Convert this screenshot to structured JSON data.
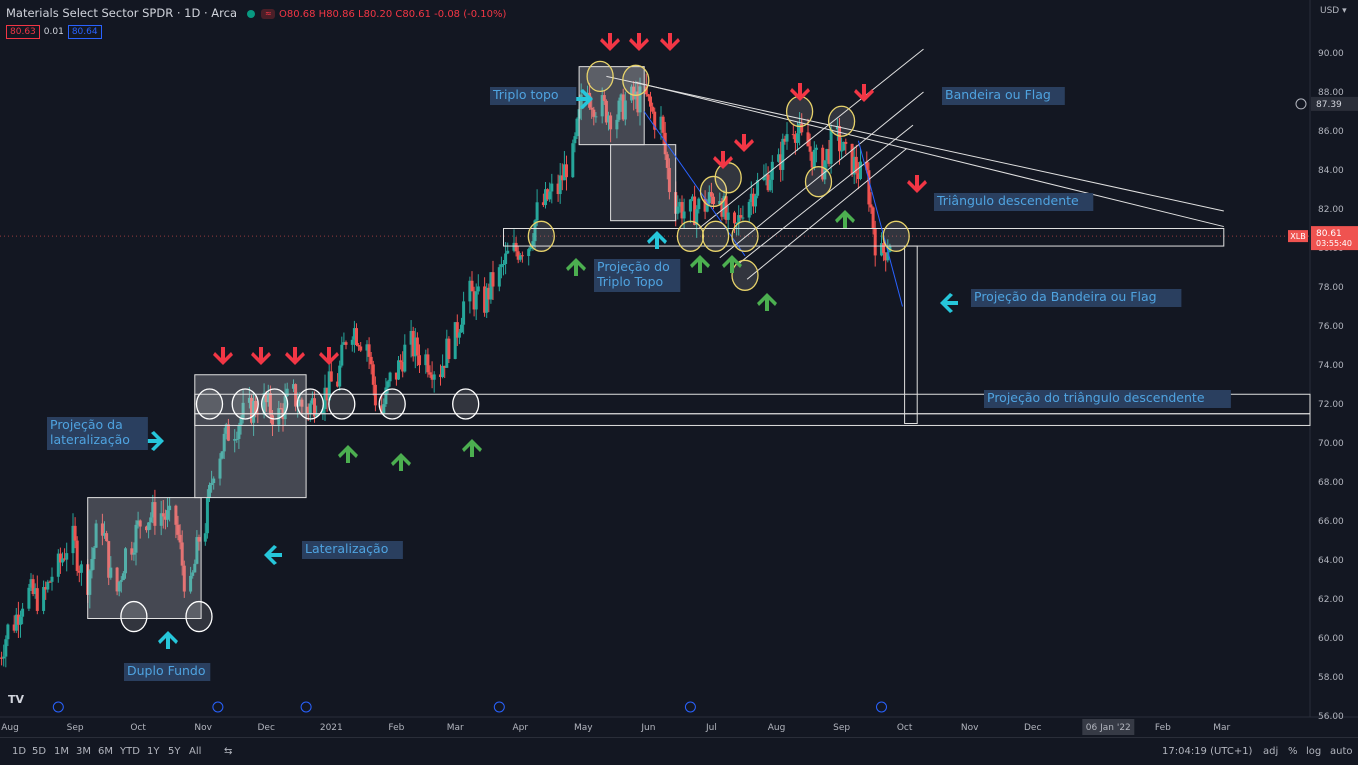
{
  "header": {
    "symbol": "Materials Select Sector SPDR · 1D · Arca",
    "ohlc": "O80.68 H80.86 L80.20 C80.61 -0.08 (-0.10%)",
    "bid": "80.63",
    "spread": "0.01",
    "ask": "80.64"
  },
  "price_scale": {
    "currency": "USD",
    "last_price_label": "80.61",
    "ticker_tag": "XLB",
    "countdown": "03:55:40",
    "crosshair_price": "87.39"
  },
  "toolbar": {
    "timeframes": [
      "1D",
      "5D",
      "1M",
      "3M",
      "6M",
      "YTD",
      "1Y",
      "5Y",
      "All"
    ],
    "clock": "17:04:19 (UTC+1)",
    "right_buttons": [
      "adj",
      "%",
      "log",
      "auto"
    ]
  },
  "logo_text": "TV",
  "chart_data": {
    "type": "candlestick",
    "title": "Materials Select Sector SPDR · 1D · Arca",
    "ylim": [
      56,
      92
    ],
    "y_ticks": [
      56,
      58,
      60,
      62,
      64,
      66,
      68,
      70,
      72,
      74,
      76,
      78,
      80,
      82,
      84,
      86,
      88,
      90
    ],
    "x_ticks": [
      "Aug",
      "Sep",
      "Oct",
      "Nov",
      "Dec",
      "2021",
      "Feb",
      "Mar",
      "Apr",
      "May",
      "Jun",
      "Jul",
      "Aug",
      "Sep",
      "Oct",
      "Nov",
      "Dec",
      "06 Jan '22",
      "Feb",
      "Mar"
    ],
    "x_tick_dates": [
      "2020-08-01",
      "2020-09-01",
      "2020-10-01",
      "2020-11-01",
      "2020-12-01",
      "2021-01-01",
      "2021-02-01",
      "2021-03-01",
      "2021-04-01",
      "2021-05-01",
      "2021-06-01",
      "2021-07-01",
      "2021-08-01",
      "2021-09-01",
      "2021-10-01",
      "2021-11-01",
      "2021-12-01",
      "2022-01-06",
      "2022-02-01",
      "2022-03-01"
    ],
    "grid": false,
    "weekly_closes": [
      [
        "2020-07-27",
        59.0
      ],
      [
        "2020-08-03",
        60.8
      ],
      [
        "2020-08-10",
        62.3
      ],
      [
        "2020-08-17",
        62.0
      ],
      [
        "2020-08-24",
        63.6
      ],
      [
        "2020-08-31",
        65.0
      ],
      [
        "2020-09-07",
        63.0
      ],
      [
        "2020-09-14",
        65.8
      ],
      [
        "2020-09-21",
        62.4
      ],
      [
        "2020-09-28",
        64.9
      ],
      [
        "2020-10-05",
        66.2
      ],
      [
        "2020-10-12",
        66.4
      ],
      [
        "2020-10-19",
        65.9
      ],
      [
        "2020-10-26",
        62.4
      ],
      [
        "2020-11-02",
        65.8
      ],
      [
        "2020-11-09",
        69.6
      ],
      [
        "2020-11-16",
        70.8
      ],
      [
        "2020-11-23",
        71.6
      ],
      [
        "2020-11-30",
        72.1
      ],
      [
        "2020-12-07",
        71.4
      ],
      [
        "2020-12-14",
        72.4
      ],
      [
        "2020-12-21",
        71.8
      ],
      [
        "2020-12-28",
        72.4
      ],
      [
        "2021-01-04",
        73.2
      ],
      [
        "2021-01-11",
        76.0
      ],
      [
        "2021-01-18",
        75.2
      ],
      [
        "2021-01-25",
        71.6
      ],
      [
        "2021-02-01",
        73.6
      ],
      [
        "2021-02-08",
        75.0
      ],
      [
        "2021-02-15",
        74.4
      ],
      [
        "2021-02-22",
        73.8
      ],
      [
        "2021-03-01",
        75.4
      ],
      [
        "2021-03-08",
        77.6
      ],
      [
        "2021-03-15",
        77.2
      ],
      [
        "2021-03-22",
        78.6
      ],
      [
        "2021-03-29",
        79.8
      ],
      [
        "2021-04-05",
        80.2
      ],
      [
        "2021-04-12",
        82.2
      ],
      [
        "2021-04-19",
        83.0
      ],
      [
        "2021-04-26",
        84.6
      ],
      [
        "2021-05-03",
        88.0
      ],
      [
        "2021-05-10",
        87.2
      ],
      [
        "2021-05-17",
        86.8
      ],
      [
        "2021-05-24",
        87.6
      ],
      [
        "2021-05-31",
        87.6
      ],
      [
        "2021-06-07",
        86.4
      ],
      [
        "2021-06-14",
        82.4
      ],
      [
        "2021-06-21",
        81.8
      ],
      [
        "2021-06-28",
        82.2
      ],
      [
        "2021-07-05",
        82.8
      ],
      [
        "2021-07-12",
        80.6
      ],
      [
        "2021-07-19",
        82.6
      ],
      [
        "2021-07-26",
        83.4
      ],
      [
        "2021-08-02",
        84.2
      ],
      [
        "2021-08-09",
        86.4
      ],
      [
        "2021-08-16",
        85.2
      ],
      [
        "2021-08-23",
        84.2
      ],
      [
        "2021-08-30",
        85.6
      ],
      [
        "2021-09-06",
        84.4
      ],
      [
        "2021-09-13",
        83.6
      ],
      [
        "2021-09-20",
        79.6
      ],
      [
        "2021-09-27",
        80.6
      ]
    ],
    "last_close": 80.61,
    "annotations": [
      {
        "text": "Duplo Fundo",
        "color": "#2196f3"
      },
      {
        "text": "Lateralização",
        "color": "#2196f3"
      },
      {
        "text": "Projeção da lateralização",
        "color": "#2196f3"
      },
      {
        "text": "Triplo topo",
        "color": "#2196f3"
      },
      {
        "text": "Projeção do Triplo Topo",
        "color": "#2196f3"
      },
      {
        "text": "Bandeira ou Flag",
        "color": "#2196f3"
      },
      {
        "text": "Triângulo descendente",
        "color": "#2196f3"
      },
      {
        "text": "Projeção da Bandeira ou Flag",
        "color": "#2196f3"
      },
      {
        "text": "Projeção do triângulo descendente",
        "color": "#2196f3"
      }
    ],
    "colors": {
      "up": "#26a69a",
      "down": "#ef5350",
      "background": "#131722",
      "label_fill": "#2a3f5f",
      "label_text": "#4fa3e0",
      "arrow_red": "#f23645",
      "arrow_green": "#4caf50",
      "arrow_blue": "#26c6da"
    }
  }
}
